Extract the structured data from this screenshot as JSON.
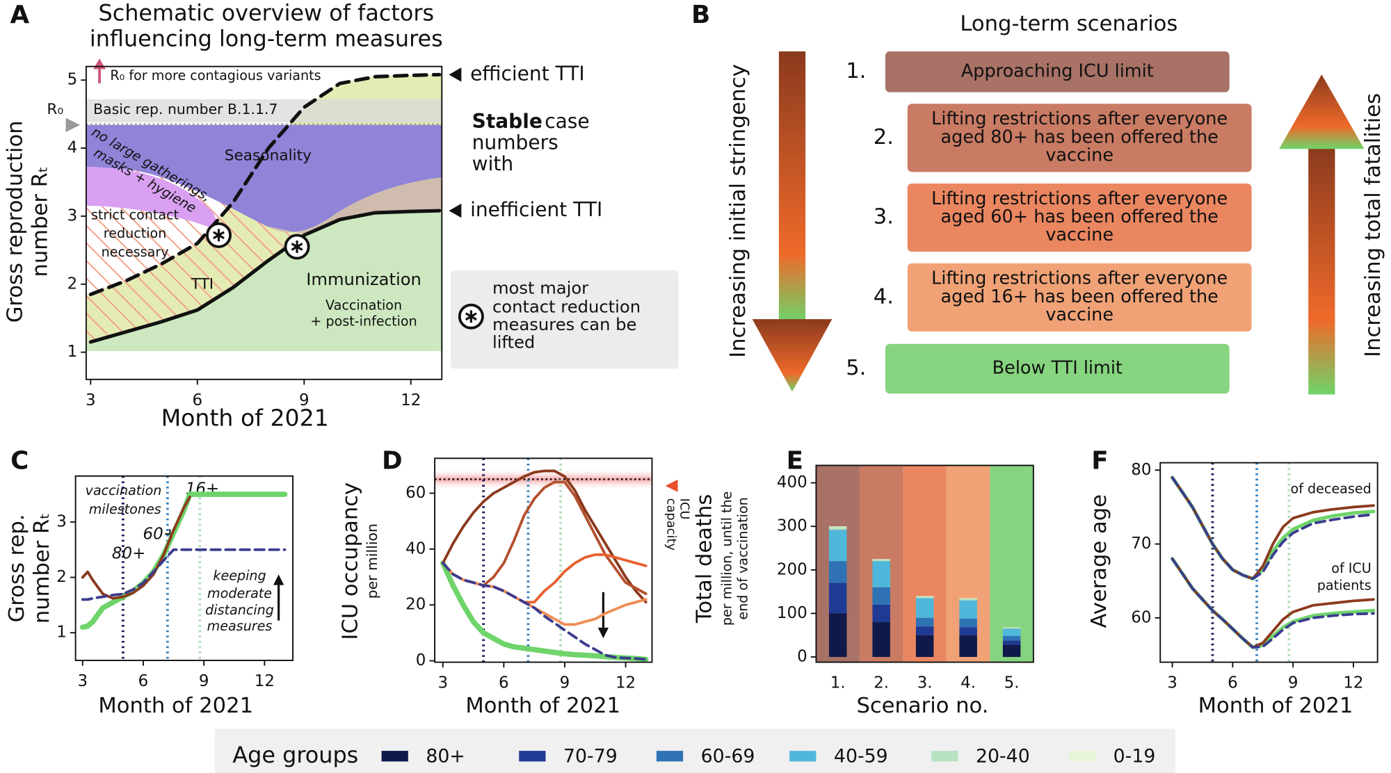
{
  "chart_data": [
    {
      "panel": "A",
      "type": "line",
      "line_labels": true,
      "title": [
        "Schematic overview of factors",
        "influencing long-term measures"
      ],
      "x_label": "Month of 2021",
      "y_label": [
        "Gross reproduction",
        "number Rₜ"
      ],
      "xlim": [
        2.875,
        12.87
      ],
      "ylim": [
        0.6,
        5.2
      ],
      "xticks": [
        3,
        6,
        9,
        12
      ],
      "yticks": [
        1,
        2,
        3,
        4,
        5
      ],
      "x": [
        3,
        4,
        5,
        6,
        7,
        8,
        9,
        10,
        11,
        12,
        12.8
      ],
      "series": [
        {
          "name": "efficient TTI",
          "color": "#111111",
          "dashed": true,
          "linewidth": 4,
          "values": [
            1.85,
            2.05,
            2.3,
            2.6,
            3.2,
            4.0,
            4.6,
            4.95,
            5.05,
            5.07,
            5.08
          ]
        },
        {
          "name": "inefficient TTI",
          "color": "#111111",
          "dashed": false,
          "linewidth": 4,
          "values": [
            1.15,
            1.3,
            1.45,
            1.62,
            1.95,
            2.35,
            2.72,
            2.95,
            3.05,
            3.07,
            3.08
          ]
        }
      ],
      "r0_value": 4.35,
      "lifted_points": {
        "x": [
          6.6,
          8.8
        ],
        "values": [
          2.72,
          2.55
        ]
      },
      "annotations": {
        "r0_label": "R₀",
        "variants": "R₀ for more contagious variants",
        "basic": "Basic rep. number B.1.1.7",
        "seasonality": "Seasonality",
        "gatherings": [
          "no large gatherings,",
          "masks + hygiene"
        ],
        "strict": [
          "strict contact",
          "reduction",
          "necessary"
        ],
        "tti": "TTI",
        "immunization": "Immunization",
        "vaccination": [
          "Vaccination",
          "+ post-infection"
        ],
        "stable": [
          "Stable",
          "case",
          "numbers",
          "with"
        ],
        "lifted": [
          "most major",
          "contact reduction",
          "measures can be",
          "lifted"
        ]
      }
    },
    {
      "panel": "C",
      "type": "line",
      "x_label": "Month of 2021",
      "y_label": [
        "Gross rep.",
        "number Rₜ"
      ],
      "xlim": [
        2.65,
        13.4
      ],
      "ylim": [
        0.5,
        3.83
      ],
      "xticks": [
        3,
        6,
        9,
        12
      ],
      "yticks": [
        1,
        2,
        3
      ],
      "x": [
        3,
        3.25,
        3.5,
        4,
        4.5,
        5,
        5.5,
        6,
        6.5,
        7,
        7.5,
        8,
        8.3,
        9,
        10,
        11,
        12,
        13
      ],
      "series": [
        {
          "color": "#6fd46a",
          "dashed": false,
          "linewidth": 6,
          "values": [
            1.1,
            1.12,
            1.2,
            1.45,
            1.55,
            1.65,
            1.75,
            1.9,
            2.1,
            2.4,
            2.8,
            3.2,
            3.5,
            3.5,
            3.5,
            3.5,
            3.5,
            3.5
          ]
        },
        {
          "color": "#8b3a1e",
          "dashed": false,
          "linewidth": 3,
          "values": [
            2.0,
            2.1,
            1.95,
            1.7,
            1.62,
            1.65,
            1.72,
            1.85,
            2.05,
            2.4,
            2.85,
            3.25,
            3.45,
            null,
            null,
            null,
            null,
            null
          ]
        },
        {
          "color": "#3b3b8f",
          "dashed": true,
          "linewidth": 3,
          "values": [
            1.6,
            1.6,
            1.62,
            1.65,
            1.68,
            1.7,
            1.78,
            1.9,
            2.1,
            2.3,
            2.5,
            2.5,
            2.5,
            2.5,
            2.5,
            2.5,
            2.5,
            2.5
          ]
        }
      ],
      "milestones": [
        {
          "x": 5,
          "color": "#1a1a5e",
          "label": "80+"
        },
        {
          "x": 7.2,
          "color": "#2f7fc0",
          "label": "60+"
        },
        {
          "x": 8.8,
          "color": "#a8dcb0",
          "label": "16+"
        }
      ],
      "annotations": {
        "milestones": [
          "vaccination",
          "milestones"
        ],
        "keeping": [
          "keeping",
          "moderate",
          "distancing",
          "measures"
        ]
      }
    },
    {
      "panel": "D",
      "type": "line",
      "x_label": "Month of 2021",
      "y_label": "ICU occupancy",
      "y_sublabel": "per million",
      "xlim": [
        2.6,
        13.3
      ],
      "ylim": [
        -0.5,
        72.5
      ],
      "xticks": [
        3,
        6,
        9,
        12
      ],
      "yticks": [
        0,
        20,
        40,
        60
      ],
      "x": [
        3,
        3.5,
        4,
        4.5,
        5,
        5.5,
        6,
        6.5,
        7,
        7.5,
        8,
        8.5,
        9,
        9.5,
        10,
        10.5,
        11,
        11.5,
        12,
        12.5,
        13
      ],
      "capacity": 65,
      "capacity_label": [
        "ICU",
        "capacity"
      ],
      "series": [
        {
          "color": "#6fd46a",
          "dashed": false,
          "linewidth": 6,
          "values": [
            35,
            27,
            20,
            14,
            10,
            8,
            6,
            5,
            4.5,
            4,
            3.5,
            3,
            2.5,
            2.2,
            2,
            1.8,
            1.5,
            1.2,
            1,
            0.8,
            0.5
          ]
        },
        {
          "color": "#8b3a1e",
          "dashed": false,
          "linewidth": 3,
          "values": [
            35,
            42,
            48,
            53,
            57,
            60,
            62,
            64,
            66,
            67.5,
            68,
            68,
            66,
            61,
            54,
            48,
            42,
            36,
            30,
            25,
            21
          ]
        },
        {
          "color": "#b4502e",
          "dashed": false,
          "linewidth": 3,
          "values": [
            35,
            31,
            29,
            28,
            27,
            30,
            35,
            43,
            52,
            58,
            62,
            64,
            64,
            59,
            52,
            45,
            38,
            33,
            28,
            26,
            24
          ]
        },
        {
          "color": "#e8602e",
          "dashed": false,
          "linewidth": 3,
          "values": [
            35,
            31,
            29,
            28,
            27,
            26.5,
            25,
            23,
            21,
            21,
            25,
            28,
            32,
            35,
            37,
            38,
            38,
            37,
            36,
            35,
            34
          ]
        },
        {
          "color": "#f08c55",
          "dashed": false,
          "linewidth": 3,
          "values": [
            35,
            31,
            29,
            28,
            27,
            26.5,
            25,
            23,
            21,
            19,
            17,
            15,
            13,
            13,
            14,
            15,
            17,
            18.5,
            20,
            21,
            22
          ]
        },
        {
          "color": "#3b3b8f",
          "dashed": true,
          "linewidth": 3,
          "values": [
            35,
            31,
            29,
            28,
            27,
            26.5,
            25,
            23,
            21,
            19,
            16,
            13.5,
            11,
            8.5,
            6,
            4,
            2,
            1.2,
            1,
            0.8,
            0.5
          ]
        }
      ],
      "milestones": [
        {
          "x": 5,
          "color": "#1a1a5e"
        },
        {
          "x": 7.2,
          "color": "#2f7fc0"
        },
        {
          "x": 8.8,
          "color": "#a8dcb0"
        }
      ]
    },
    {
      "panel": "E",
      "type": "bar",
      "x_label": "Scenario no.",
      "y_label": "Total deaths",
      "y_sublabel": [
        "per million, until the",
        "end of vaccination"
      ],
      "ylim": [
        -12,
        440
      ],
      "yticks": [
        0,
        100,
        200,
        300,
        400
      ],
      "categories": [
        "1.",
        "2.",
        "3.",
        "4.",
        "5."
      ],
      "backgrounds": [
        "#a87266",
        "#c97b63",
        "#ea8660",
        "#f0a276",
        "#86d47f"
      ],
      "legend_title": "Age groups",
      "series": [
        {
          "name": "80+",
          "color": "#0f1a4a",
          "values": [
            100,
            80,
            50,
            50,
            28
          ]
        },
        {
          "name": "70-79",
          "color": "#1f3a93",
          "values": [
            70,
            40,
            20,
            18,
            10
          ]
        },
        {
          "name": "60-69",
          "color": "#2f73b5",
          "values": [
            50,
            40,
            20,
            20,
            10
          ]
        },
        {
          "name": "40-59",
          "color": "#4fb7da",
          "values": [
            72,
            60,
            45,
            42,
            17
          ]
        },
        {
          "name": "20-40",
          "color": "#b7e2c2",
          "values": [
            6,
            4,
            4,
            4,
            2
          ]
        },
        {
          "name": "0-19",
          "color": "#e6f5d8",
          "values": [
            2,
            1,
            1,
            1,
            1
          ]
        }
      ]
    },
    {
      "panel": "F",
      "type": "line",
      "x_label": "Month of 2021",
      "y_label": "Average age",
      "xlim": [
        2.4,
        13.2
      ],
      "ylim": [
        54,
        81
      ],
      "xticks": [
        3,
        6,
        9,
        12
      ],
      "yticks": [
        60,
        70,
        80
      ],
      "x": [
        3,
        3.5,
        4,
        4.5,
        5,
        5.5,
        6,
        6.5,
        7,
        7.5,
        8,
        8.5,
        9,
        10,
        11,
        12,
        13
      ],
      "series": [
        {
          "color": "#6fd46a",
          "dashed": false,
          "linewidth": 4,
          "values": [
            79,
            77,
            75,
            72.5,
            70,
            68,
            66.5,
            65.8,
            65.3,
            66.5,
            69,
            70.8,
            72,
            73.2,
            73.8,
            74.2,
            74.4
          ]
        },
        {
          "color": "#8b3a1e",
          "dashed": false,
          "linewidth": 3,
          "values": [
            79,
            77,
            75,
            72.5,
            70,
            68,
            66.5,
            65.8,
            65.3,
            67,
            70,
            72.3,
            73.5,
            74.3,
            74.7,
            75,
            75.2
          ]
        },
        {
          "color": "#3b3b8f",
          "dashed": true,
          "linewidth": 3,
          "values": [
            79,
            77,
            75,
            72.5,
            70,
            68,
            66.5,
            65.8,
            65.3,
            66.2,
            68.5,
            70.3,
            71.5,
            72.8,
            73.3,
            73.7,
            74
          ]
        },
        {
          "color": "#6fd46a",
          "dashed": false,
          "linewidth": 4,
          "values": [
            68,
            66,
            64,
            62.5,
            61,
            59.8,
            58.5,
            57.2,
            56,
            56.3,
            57.5,
            58.7,
            59.5,
            60.3,
            60.6,
            60.8,
            61
          ]
        },
        {
          "color": "#8b3a1e",
          "dashed": false,
          "linewidth": 3,
          "values": [
            68,
            66,
            64,
            62.5,
            61,
            59.8,
            58.5,
            57.2,
            56,
            56.6,
            58.2,
            59.8,
            60.8,
            61.7,
            62,
            62.3,
            62.5
          ]
        },
        {
          "color": "#3b3b8f",
          "dashed": true,
          "linewidth": 3,
          "values": [
            68,
            66,
            64,
            62.5,
            61,
            59.8,
            58.5,
            57.2,
            56,
            56.1,
            57.2,
            58.4,
            59.3,
            60,
            60.3,
            60.5,
            60.6
          ]
        }
      ],
      "milestones": [
        {
          "x": 5,
          "color": "#1a1a5e"
        },
        {
          "x": 7.2,
          "color": "#2f7fc0"
        },
        {
          "x": 8.8,
          "color": "#a8dcb0"
        }
      ],
      "annotations": {
        "deceased": "of deceased",
        "icu": [
          "of ICU",
          "patients"
        ]
      }
    }
  ],
  "diagram": {
    "panel": "B",
    "title": "Long-term scenarios",
    "left_label": "Increasing initial stringency",
    "right_label": "Increasing total fatalities",
    "scenarios": [
      {
        "number": "1.",
        "label": [
          "Approaching ICU limit"
        ],
        "color": "#a87266"
      },
      {
        "number": "2.",
        "label": [
          "Lifting restrictions after everyone",
          "aged 80+ has been offered the",
          "vaccine"
        ],
        "color": "#c97b63"
      },
      {
        "number": "3.",
        "label": [
          "Lifting restrictions after everyone",
          "aged 60+ has been offered the",
          "vaccine"
        ],
        "color": "#ea8660"
      },
      {
        "number": "4.",
        "label": [
          "Lifting restrictions after everyone",
          "aged 16+ has been offered the",
          "vaccine"
        ],
        "color": "#f0a276"
      },
      {
        "number": "5.",
        "label": [
          "Below TTI limit"
        ],
        "color": "#86d47f"
      }
    ]
  }
}
